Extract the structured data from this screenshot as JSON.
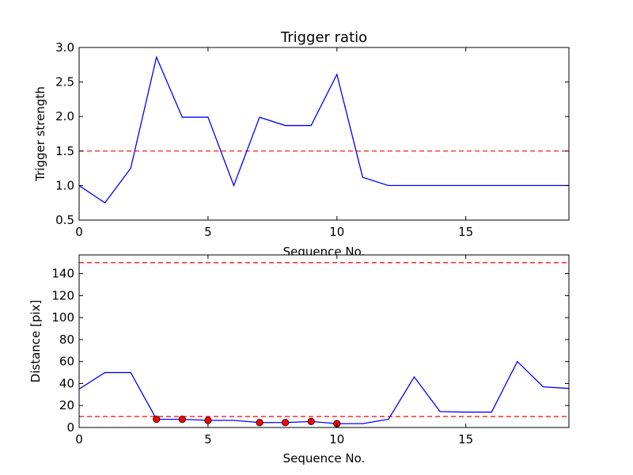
{
  "chart_data": [
    {
      "type": "line",
      "title": "Trigger ratio",
      "xlabel": "Sequence No.",
      "ylabel": "Trigger strength",
      "xlim": [
        0,
        19
      ],
      "ylim": [
        0.5,
        3.0
      ],
      "xticks": [
        0,
        5,
        10,
        15
      ],
      "yticks": [
        0.5,
        1.0,
        1.5,
        2.0,
        2.5,
        3.0
      ],
      "grid": false,
      "x": [
        0,
        1,
        2,
        3,
        4,
        5,
        6,
        7,
        8,
        9,
        10,
        11,
        12,
        13,
        14,
        15,
        16,
        17,
        18,
        19
      ],
      "series": [
        {
          "values": [
            1.0,
            0.75,
            1.25,
            2.86,
            1.99,
            1.99,
            1.0,
            1.99,
            1.87,
            1.87,
            2.61,
            1.12,
            1.0,
            1.0,
            1.0,
            1.0,
            1.0,
            1.0,
            1.0,
            1.0
          ],
          "color": "#0000ff"
        }
      ],
      "thresholds": [
        {
          "value": 1.5,
          "color": "#ff0000",
          "style": "dashed"
        }
      ],
      "markers": []
    },
    {
      "type": "line",
      "title": "",
      "xlabel": "Sequence No.",
      "ylabel": "Distance [pix]",
      "xlim": [
        0,
        19
      ],
      "ylim": [
        0,
        157
      ],
      "xticks": [
        0,
        5,
        10,
        15
      ],
      "yticks": [
        0,
        20,
        40,
        60,
        80,
        100,
        120,
        140
      ],
      "grid": false,
      "x": [
        0,
        1,
        2,
        3,
        4,
        5,
        6,
        7,
        8,
        9,
        10,
        11,
        12,
        13,
        14,
        15,
        16,
        17,
        18,
        19
      ],
      "series": [
        {
          "values": [
            35,
            50,
            50,
            7.5,
            7.5,
            6.5,
            6.5,
            4.5,
            4.5,
            5.5,
            3.5,
            3.5,
            7.5,
            46,
            14.5,
            14,
            14,
            60,
            37,
            35.5
          ],
          "color": "#0000ff"
        }
      ],
      "thresholds": [
        {
          "value": 150,
          "color": "#ff0000",
          "style": "dashed"
        },
        {
          "value": 10,
          "color": "#ff0000",
          "style": "dashed"
        }
      ],
      "markers": [
        {
          "x": 3,
          "y": 7.5
        },
        {
          "x": 4,
          "y": 7.5
        },
        {
          "x": 5,
          "y": 6.5
        },
        {
          "x": 7,
          "y": 4.5
        },
        {
          "x": 8,
          "y": 4.5
        },
        {
          "x": 9,
          "y": 5.5
        },
        {
          "x": 10,
          "y": 3.5
        }
      ],
      "marker_color": "#ff0000"
    }
  ]
}
